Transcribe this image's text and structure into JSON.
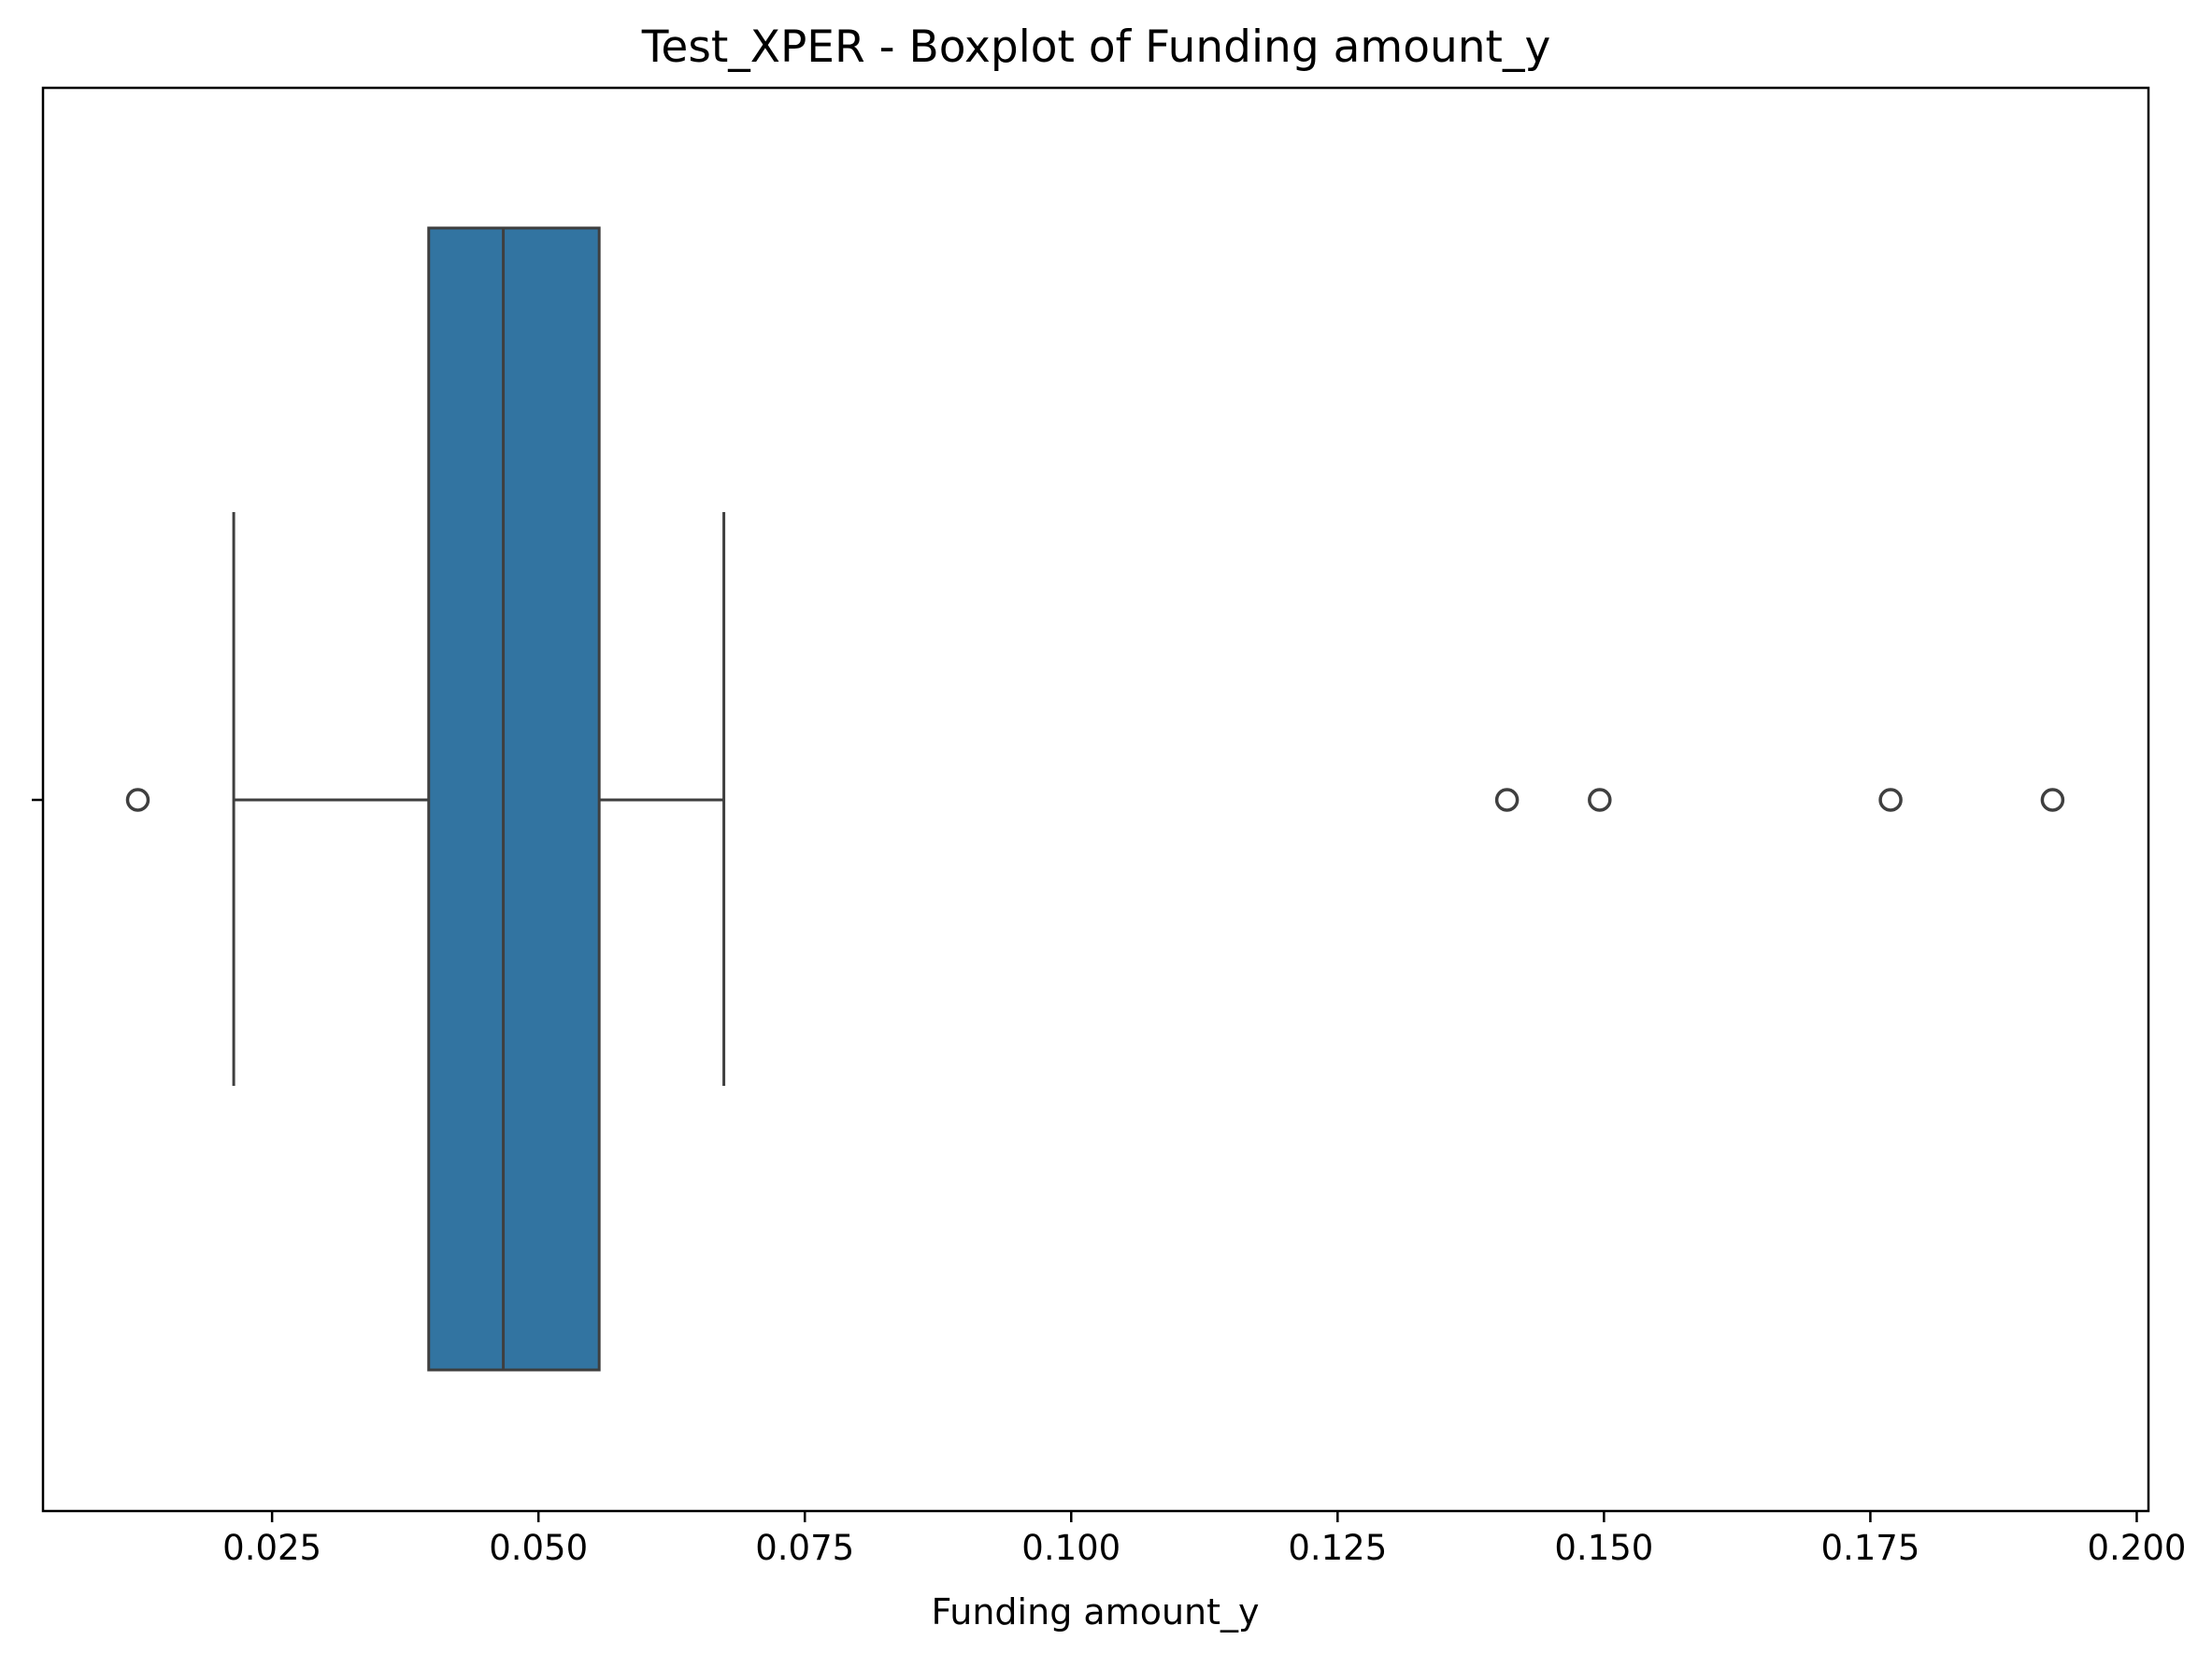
{
  "chart_data": {
    "type": "boxplot",
    "orientation": "horizontal",
    "title": "Test_XPER - Boxplot of Funding amount_y",
    "xlabel": "Funding amount_y",
    "ylabel": "",
    "xlim": [
      0.0035,
      0.2011
    ],
    "x_ticks": [
      0.025,
      0.05,
      0.075,
      0.1,
      0.125,
      0.15,
      0.175,
      0.2
    ],
    "x_tick_labels": [
      "0.025",
      "0.050",
      "0.075",
      "0.100",
      "0.125",
      "0.150",
      "0.175",
      "0.200"
    ],
    "grid": false,
    "box": {
      "whisker_low": 0.0214,
      "q1": 0.0397,
      "median": 0.0467,
      "q3": 0.0557,
      "whisker_high": 0.0674
    },
    "outliers": [
      0.0124,
      0.1409,
      0.1496,
      0.1769,
      0.1921
    ],
    "colors": {
      "box_fill": "#3274a1",
      "lines": "#3f3f3f",
      "axes": "#000000"
    }
  }
}
